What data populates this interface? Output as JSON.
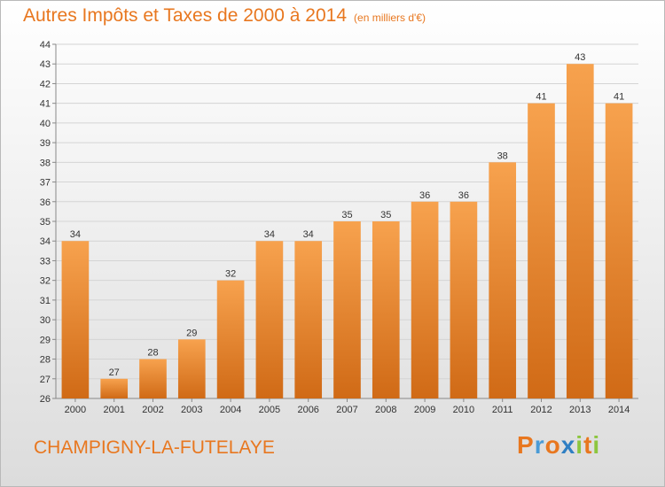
{
  "header": {
    "title": "Autres Impôts et Taxes de 2000 à 2014",
    "unit": "(en milliers d'€)"
  },
  "footer": {
    "commune": "CHAMPIGNY-LA-FUTELAYE",
    "brand": "Proxiti",
    "brand_letters": [
      {
        "char": "P",
        "color": "#e8771f"
      },
      {
        "char": "r",
        "color": "#4a9bd6"
      },
      {
        "char": "o",
        "color": "#e8771f"
      },
      {
        "char": "x",
        "color": "#2f7fc3"
      },
      {
        "char": "i",
        "color": "#8cc63f"
      },
      {
        "char": "t",
        "color": "#e8771f"
      },
      {
        "char": "i",
        "color": "#8cc63f"
      }
    ]
  },
  "colors": {
    "accent": "#e8771f",
    "bar_top": "#f7a24e",
    "bar_bottom": "#d06a16",
    "grid": "#d4d4d4"
  },
  "chart_data": {
    "type": "bar",
    "title": "Autres Impôts et Taxes de 2000 à 2014",
    "subtitle": "(en milliers d'€)",
    "categories": [
      "2000",
      "2001",
      "2002",
      "2003",
      "2004",
      "2005",
      "2006",
      "2007",
      "2008",
      "2009",
      "2010",
      "2011",
      "2012",
      "2013",
      "2014"
    ],
    "values": [
      34,
      27,
      28,
      29,
      32,
      34,
      34,
      35,
      35,
      36,
      36,
      38,
      41,
      43,
      41
    ],
    "ylim": [
      26,
      44
    ],
    "yticks": [
      26,
      27,
      28,
      29,
      30,
      31,
      32,
      33,
      34,
      35,
      36,
      37,
      38,
      39,
      40,
      41,
      42,
      43,
      44
    ],
    "grid": true,
    "data_labels": true
  }
}
